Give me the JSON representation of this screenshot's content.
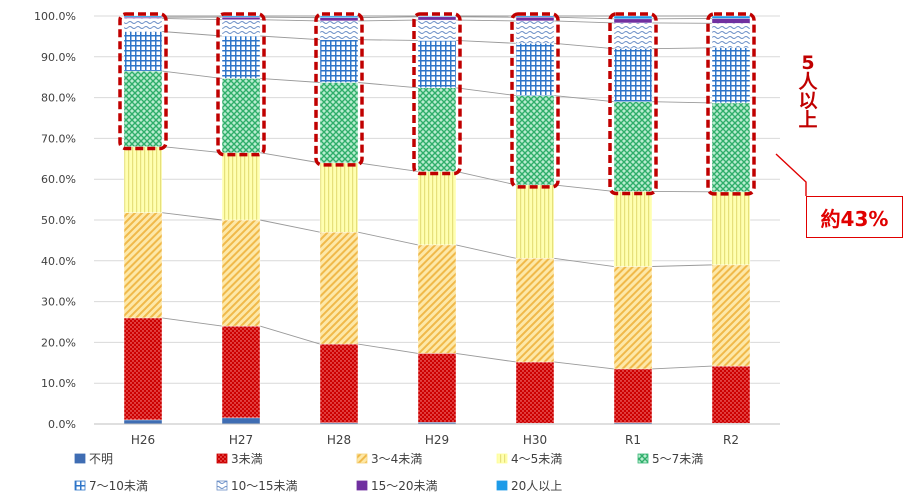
{
  "chart_data": {
    "type": "bar",
    "stacked": true,
    "percent": true,
    "title": "",
    "xlabel": "",
    "ylabel": "",
    "ylim": [
      0,
      100
    ],
    "y_ticks": [
      "0.0%",
      "10.0%",
      "20.0%",
      "30.0%",
      "40.0%",
      "50.0%",
      "60.0%",
      "70.0%",
      "80.0%",
      "90.0%",
      "100.0%"
    ],
    "categories": [
      "H26",
      "H27",
      "H28",
      "H29",
      "H30",
      "R1",
      "R2"
    ],
    "grid": true,
    "legend_position": "bottom",
    "series": [
      {
        "name": "不明",
        "values": [
          1.0,
          1.5,
          0.3,
          0.4,
          0.2,
          0.3,
          0.2
        ],
        "color": "#3f6db3",
        "pattern": "solid"
      },
      {
        "name": "3未満",
        "values": [
          25.0,
          22.5,
          19.3,
          16.9,
          15.0,
          13.2,
          14.0
        ],
        "color": "#cc0000",
        "pattern": "dots"
      },
      {
        "name": "3～4未満",
        "values": [
          25.8,
          26.0,
          27.4,
          26.6,
          25.4,
          25.1,
          24.8
        ],
        "color": "#f5d37a",
        "pattern": "diagonal"
      },
      {
        "name": "4～5未満",
        "values": [
          16.2,
          16.5,
          17.0,
          18.0,
          18.0,
          18.4,
          17.9
        ],
        "color": "#ffff99",
        "pattern": "vertical"
      },
      {
        "name": "5～7未満",
        "values": [
          18.5,
          18.2,
          19.7,
          20.5,
          21.9,
          22.0,
          21.8
        ],
        "color": "#3cb878",
        "pattern": "check"
      },
      {
        "name": "7～10未満",
        "values": [
          9.7,
          10.4,
          10.5,
          11.6,
          12.8,
          13.0,
          13.5
        ],
        "color": "#2e75c8",
        "pattern": "grid"
      },
      {
        "name": "10～15未満",
        "values": [
          3.2,
          4.0,
          4.6,
          5.0,
          5.5,
          6.3,
          6.0
        ],
        "color": "#6b8fc7",
        "pattern": "wave"
      },
      {
        "name": "15～20未満",
        "values": [
          0.3,
          0.6,
          0.8,
          0.8,
          0.9,
          1.0,
          1.2
        ],
        "color": "#7030a0",
        "pattern": "solid"
      },
      {
        "name": "20人以上",
        "values": [
          0.3,
          0.3,
          0.4,
          0.2,
          0.3,
          0.7,
          0.6
        ],
        "color": "#1e9be8",
        "pattern": "solid"
      }
    ],
    "annotations": {
      "highlight": "5人以上",
      "callout": "約43%"
    }
  },
  "annotation_side": [
    "5",
    "人",
    "以",
    "上"
  ],
  "annotation_callout": "約43%"
}
